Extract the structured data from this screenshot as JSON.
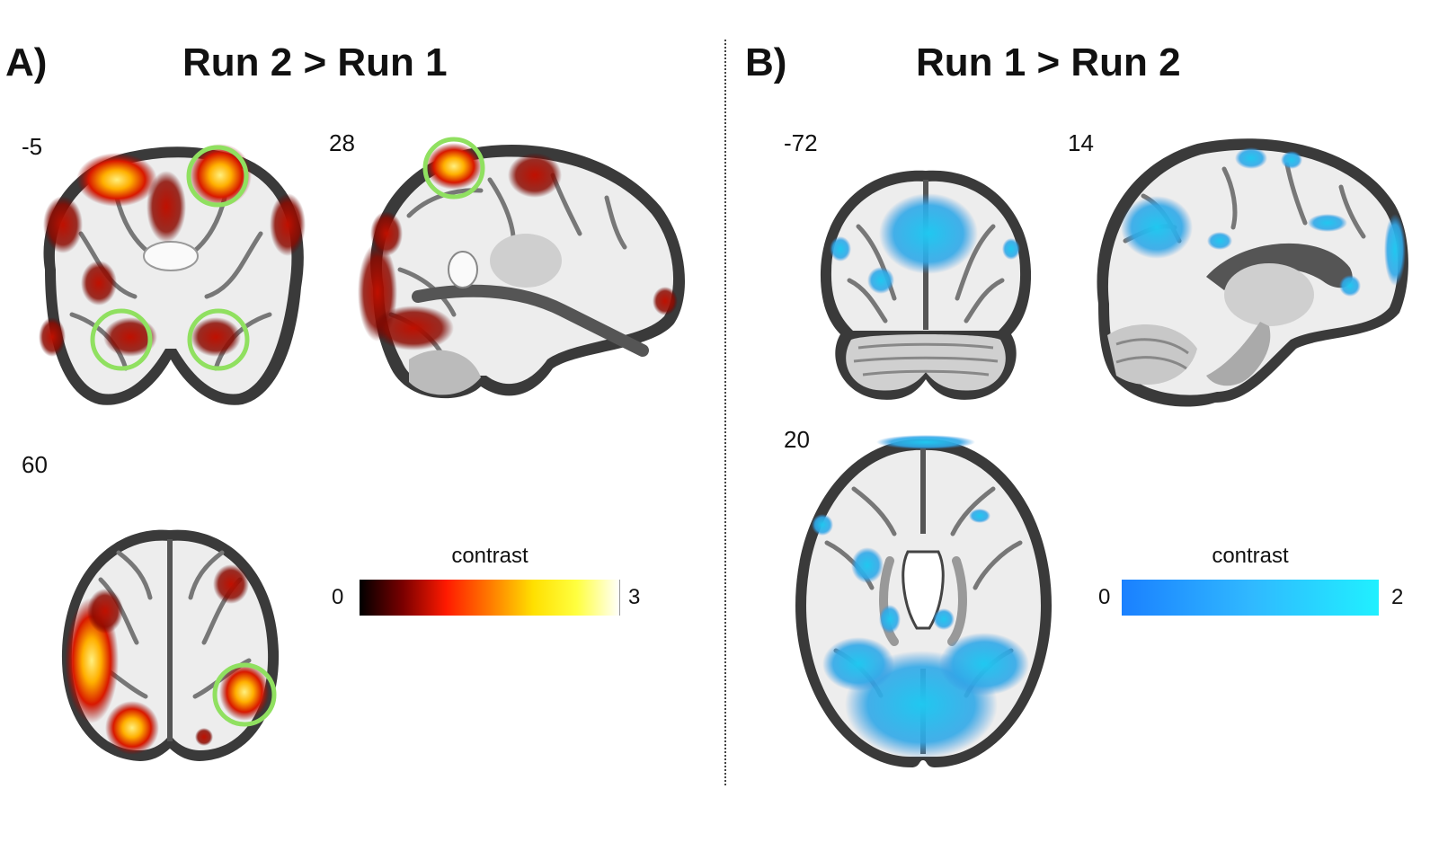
{
  "panels": [
    {
      "letter": "A)",
      "title": "Run 2 > Run 1",
      "slices": [
        {
          "coord": "-5",
          "view": "coronal"
        },
        {
          "coord": "28",
          "view": "sagittal"
        },
        {
          "coord": "60",
          "view": "axial"
        }
      ],
      "colorbar": {
        "label": "contrast",
        "min": "0",
        "max": "3",
        "colors": [
          "#000000",
          "#7a0000",
          "#ff1a00",
          "#ff7a00",
          "#ffe000",
          "#ffff40",
          "#ffffff"
        ]
      },
      "activation_color": "#e01000",
      "highlight_color": "#90e060"
    },
    {
      "letter": "B)",
      "title": "Run 1 > Run 2",
      "slices": [
        {
          "coord": "-72",
          "view": "coronal"
        },
        {
          "coord": "14",
          "view": "sagittal"
        },
        {
          "coord": "20",
          "view": "axial"
        }
      ],
      "colorbar": {
        "label": "contrast",
        "min": "0",
        "max": "2",
        "colors": [
          "#1a80ff",
          "#30b8ff",
          "#20f0ff"
        ]
      },
      "activation_color": "#30b8f0"
    }
  ]
}
